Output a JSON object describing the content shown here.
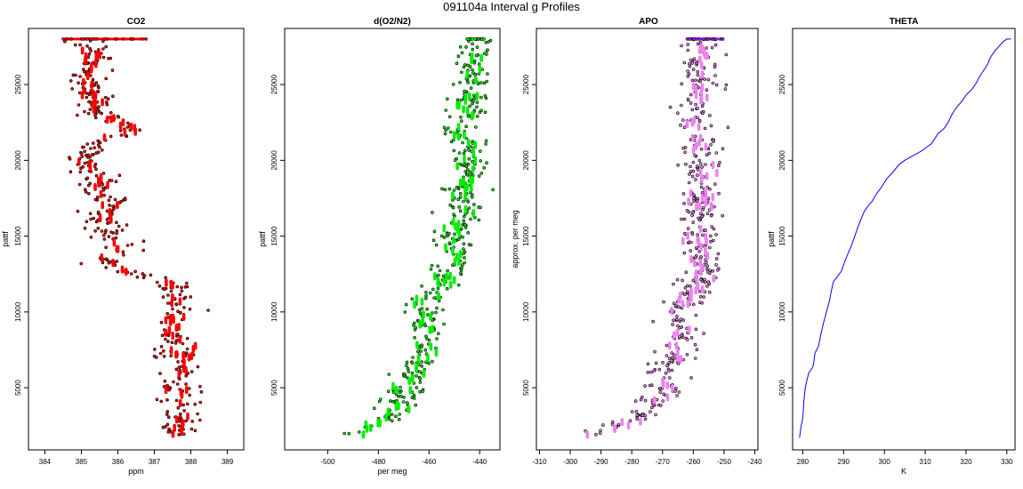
{
  "figure": {
    "title": "091104a   Interval g Profiles"
  },
  "colors": {
    "co2_fill": "#ff0000",
    "o2n2_fill": "#00ee00",
    "apo_fill": "#ee82ee",
    "apo_top_fill": "#a020f0",
    "theta_line": "#0000ff",
    "point_edge": "#000000"
  },
  "chart_data": [
    {
      "type": "scatter",
      "title": "CO2",
      "xlabel": "ppm",
      "ylabel": "pattf",
      "xlim": [
        383.55,
        389.45
      ],
      "ylim": [
        900,
        28700
      ],
      "xticks": [
        384,
        385,
        386,
        387,
        388,
        389
      ],
      "yticks": [
        5000,
        10000,
        15000,
        20000,
        25000
      ],
      "profile": [
        [
          1900,
          387.7
        ],
        [
          3000,
          387.8
        ],
        [
          4000,
          387.7
        ],
        [
          5000,
          387.7
        ],
        [
          6000,
          387.8
        ],
        [
          7000,
          387.7
        ],
        [
          8000,
          387.6
        ],
        [
          9000,
          387.5
        ],
        [
          10000,
          387.6
        ],
        [
          11000,
          387.6
        ],
        [
          12000,
          387.5
        ],
        [
          13000,
          385.5
        ],
        [
          14000,
          386.0
        ],
        [
          15000,
          385.9
        ],
        [
          16000,
          385.6
        ],
        [
          17000,
          385.8
        ],
        [
          18000,
          385.5
        ],
        [
          19000,
          385.4
        ],
        [
          20000,
          385.0
        ],
        [
          21000,
          385.3
        ],
        [
          22000,
          386.5
        ],
        [
          23000,
          385.4
        ],
        [
          24000,
          385.4
        ],
        [
          25000,
          385.2
        ],
        [
          26000,
          385.2
        ],
        [
          27000,
          385.4
        ],
        [
          28000,
          385.0
        ]
      ],
      "top_band": [
        28000,
        384.5,
        386.8
      ]
    },
    {
      "type": "scatter",
      "title": "d(O2/N2)",
      "xlabel": "per meg",
      "ylabel": "pattf",
      "xlim": [
        -517,
        -432
      ],
      "ylim": [
        900,
        28700
      ],
      "xticks": [
        -500,
        -480,
        -460,
        -440
      ],
      "yticks": [
        5000,
        10000,
        15000,
        20000,
        25000
      ],
      "profile": [
        [
          1900,
          -488
        ],
        [
          2500,
          -483
        ],
        [
          3000,
          -476
        ],
        [
          4000,
          -470
        ],
        [
          5000,
          -470
        ],
        [
          6000,
          -466
        ],
        [
          7000,
          -462
        ],
        [
          8000,
          -462
        ],
        [
          9000,
          -460
        ],
        [
          10000,
          -464
        ],
        [
          11000,
          -460
        ],
        [
          12000,
          -454
        ],
        [
          13000,
          -450
        ],
        [
          14000,
          -449
        ],
        [
          15000,
          -450
        ],
        [
          16000,
          -447
        ],
        [
          17000,
          -447
        ],
        [
          18000,
          -446
        ],
        [
          19000,
          -444
        ],
        [
          20000,
          -444
        ],
        [
          21000,
          -444
        ],
        [
          22000,
          -453
        ],
        [
          23000,
          -446
        ],
        [
          24000,
          -445
        ],
        [
          25000,
          -444
        ],
        [
          26000,
          -444
        ],
        [
          27000,
          -442
        ],
        [
          28000,
          -441
        ]
      ],
      "top_band": [
        28000,
        -445,
        -438
      ]
    },
    {
      "type": "scatter",
      "title": "APO",
      "xlabel": "",
      "ylabel": "approx. per meg",
      "xlim": [
        -311,
        -239
      ],
      "ylim": [
        900,
        28700
      ],
      "xticks": [
        -310,
        -300,
        -290,
        -280,
        -270,
        -260,
        -250,
        -240
      ],
      "yticks": [
        5000,
        10000,
        15000,
        20000,
        25000
      ],
      "profile": [
        [
          1900,
          -290
        ],
        [
          2500,
          -283
        ],
        [
          3000,
          -278
        ],
        [
          4000,
          -273
        ],
        [
          5000,
          -270
        ],
        [
          6000,
          -270
        ],
        [
          7000,
          -266
        ],
        [
          8000,
          -264
        ],
        [
          9000,
          -263
        ],
        [
          10000,
          -266
        ],
        [
          11000,
          -262
        ],
        [
          12000,
          -258
        ],
        [
          13000,
          -257
        ],
        [
          14000,
          -257
        ],
        [
          15000,
          -258
        ],
        [
          16000,
          -258
        ],
        [
          17000,
          -258
        ],
        [
          18000,
          -258
        ],
        [
          19000,
          -258
        ],
        [
          20000,
          -257
        ],
        [
          21000,
          -258
        ],
        [
          22000,
          -260
        ],
        [
          23000,
          -259
        ],
        [
          24000,
          -258
        ],
        [
          25000,
          -258
        ],
        [
          26000,
          -258
        ],
        [
          27000,
          -258
        ],
        [
          28000,
          -257
        ]
      ],
      "top_band": [
        28000,
        -262,
        -250
      ]
    },
    {
      "type": "line",
      "title": "THETA",
      "xlabel": "K",
      "ylabel": "pattf",
      "xlim": [
        277.5,
        332
      ],
      "ylim": [
        900,
        28700
      ],
      "xticks": [
        280,
        290,
        300,
        310,
        320,
        330
      ],
      "yticks": [
        5000,
        10000,
        15000,
        20000,
        25000
      ],
      "series": [
        {
          "x": [
            279.2,
            279.6,
            280.0,
            280.3,
            280.6,
            281.1,
            281.5,
            282.3,
            282.6,
            283.0,
            283.8,
            284.4,
            285.0,
            285.8,
            286.5,
            287.0,
            287.5,
            288.4,
            289.5,
            290.1,
            291.0,
            291.8,
            292.6,
            293.5,
            294.4,
            295.0,
            296.0,
            297.0,
            298.1,
            299.2,
            300.6,
            302.0,
            303.5,
            305.0,
            307.0,
            309.0,
            310.5,
            311.5,
            312.5,
            313.2,
            313.8,
            314.6,
            315.6,
            316.5,
            317.2,
            318.0,
            319.0,
            320.0,
            321.5,
            322.5,
            323.5,
            324.5,
            325.2,
            326.0,
            327.0,
            328.0,
            329.0,
            330.0,
            331.0
          ],
          "y": [
            1700,
            2500,
            3000,
            4200,
            5000,
            5600,
            6000,
            6300,
            6500,
            7300,
            7700,
            8500,
            9200,
            10000,
            10700,
            11400,
            12000,
            12300,
            12700,
            13200,
            13800,
            14300,
            14900,
            15600,
            16200,
            16600,
            17000,
            17300,
            17800,
            18200,
            18800,
            19200,
            19700,
            20000,
            20300,
            20600,
            20900,
            21100,
            21500,
            21800,
            21900,
            22100,
            22500,
            23000,
            23300,
            23600,
            23900,
            24300,
            24700,
            25100,
            25600,
            26000,
            26300,
            26800,
            27200,
            27500,
            27800,
            28000,
            28000
          ]
        }
      ]
    }
  ]
}
